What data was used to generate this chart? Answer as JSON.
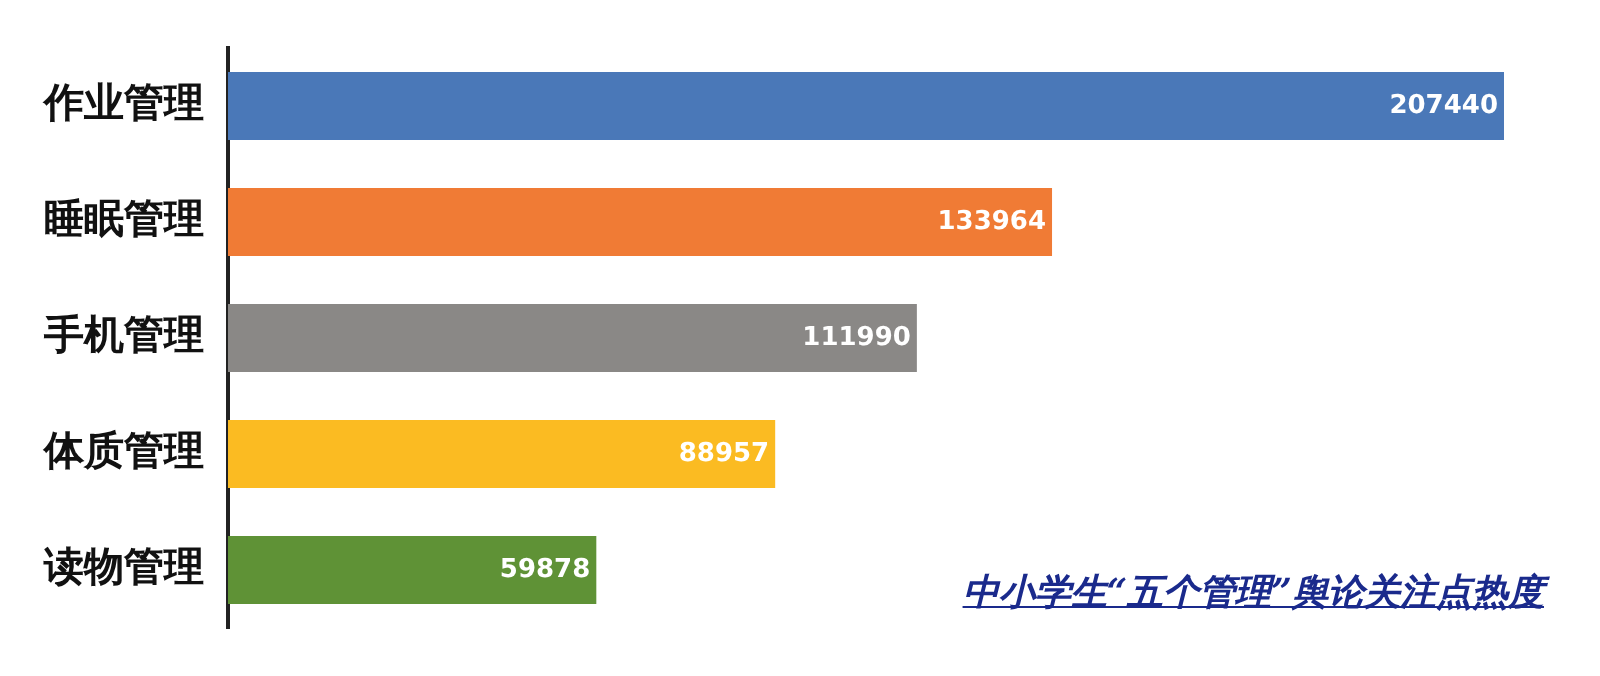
{
  "chart_data": {
    "type": "bar",
    "orientation": "horizontal",
    "title": "中小学生“五个管理”舆论关注点热度",
    "categories": [
      "作业管理",
      "睡眠管理",
      "手机管理",
      "体质管理",
      "读物管理"
    ],
    "values": [
      207440,
      133964,
      111990,
      88957,
      59878
    ],
    "colors": [
      "#4a78b8",
      "#f07b35",
      "#8a8886",
      "#fbbb22",
      "#5f9236"
    ],
    "data_labels": true,
    "legend": false
  }
}
